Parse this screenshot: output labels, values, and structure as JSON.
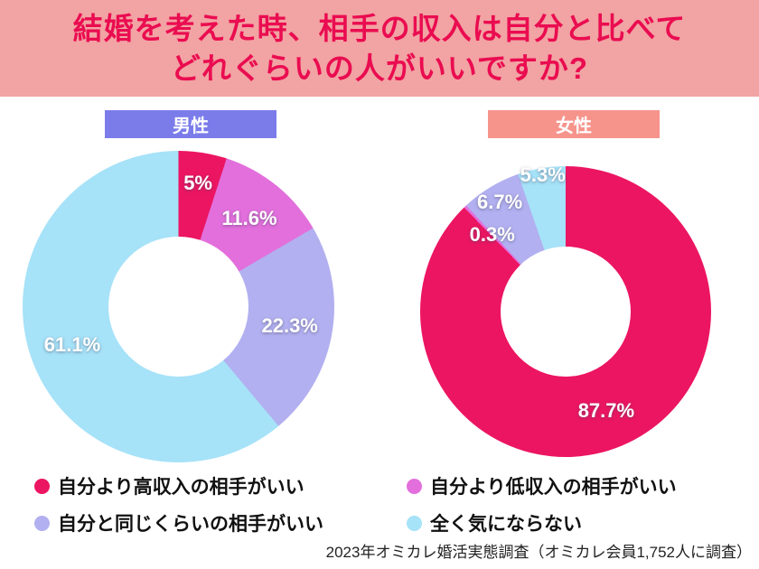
{
  "title": {
    "line1": "結婚を考えた時、相手の収入は自分と比べて",
    "line2": "どれぐらいの人がいいですか?"
  },
  "colors": {
    "banner_bg": "#f2a3a3",
    "title_text": "#ea0c50",
    "badge_male_bg": "#7b7cea",
    "badge_female_bg": "#f6948c",
    "badge_text": "#ffffff",
    "higher": "#ec1562",
    "lower": "#e26fdc",
    "same": "#b2b0f0",
    "none": "#a6e2f8",
    "legend_text": "#111111",
    "source_text": "#222222"
  },
  "chart_data": [
    {
      "type": "pie",
      "donut": true,
      "group": "男性",
      "categories": [
        "自分より高収入の相手がいい",
        "自分より低収入の相手がいい",
        "自分と同じくらいの相手がいい",
        "全く気にならない"
      ],
      "values": [
        5,
        11.6,
        22.3,
        61.1
      ],
      "unit": "%",
      "start_angle_deg": 0,
      "direction": "clockwise"
    },
    {
      "type": "pie",
      "donut": true,
      "group": "女性",
      "categories": [
        "自分より高収入の相手がいい",
        "自分より低収入の相手がいい",
        "自分と同じくらいの相手がいい",
        "全く気にならない"
      ],
      "values": [
        87.7,
        0.3,
        6.7,
        5.3
      ],
      "unit": "%",
      "start_angle_deg": 0,
      "direction": "clockwise"
    }
  ],
  "legend": [
    {
      "label": "自分より高収入の相手がいい",
      "color_key": "higher"
    },
    {
      "label": "自分より低収入の相手がいい",
      "color_key": "lower"
    },
    {
      "label": "自分と同じくらいの相手がいい",
      "color_key": "same"
    },
    {
      "label": "全く気にならない",
      "color_key": "none"
    }
  ],
  "source": "2023年オミカレ婚活実態調査（オミカレ会員1,752人に調査）"
}
